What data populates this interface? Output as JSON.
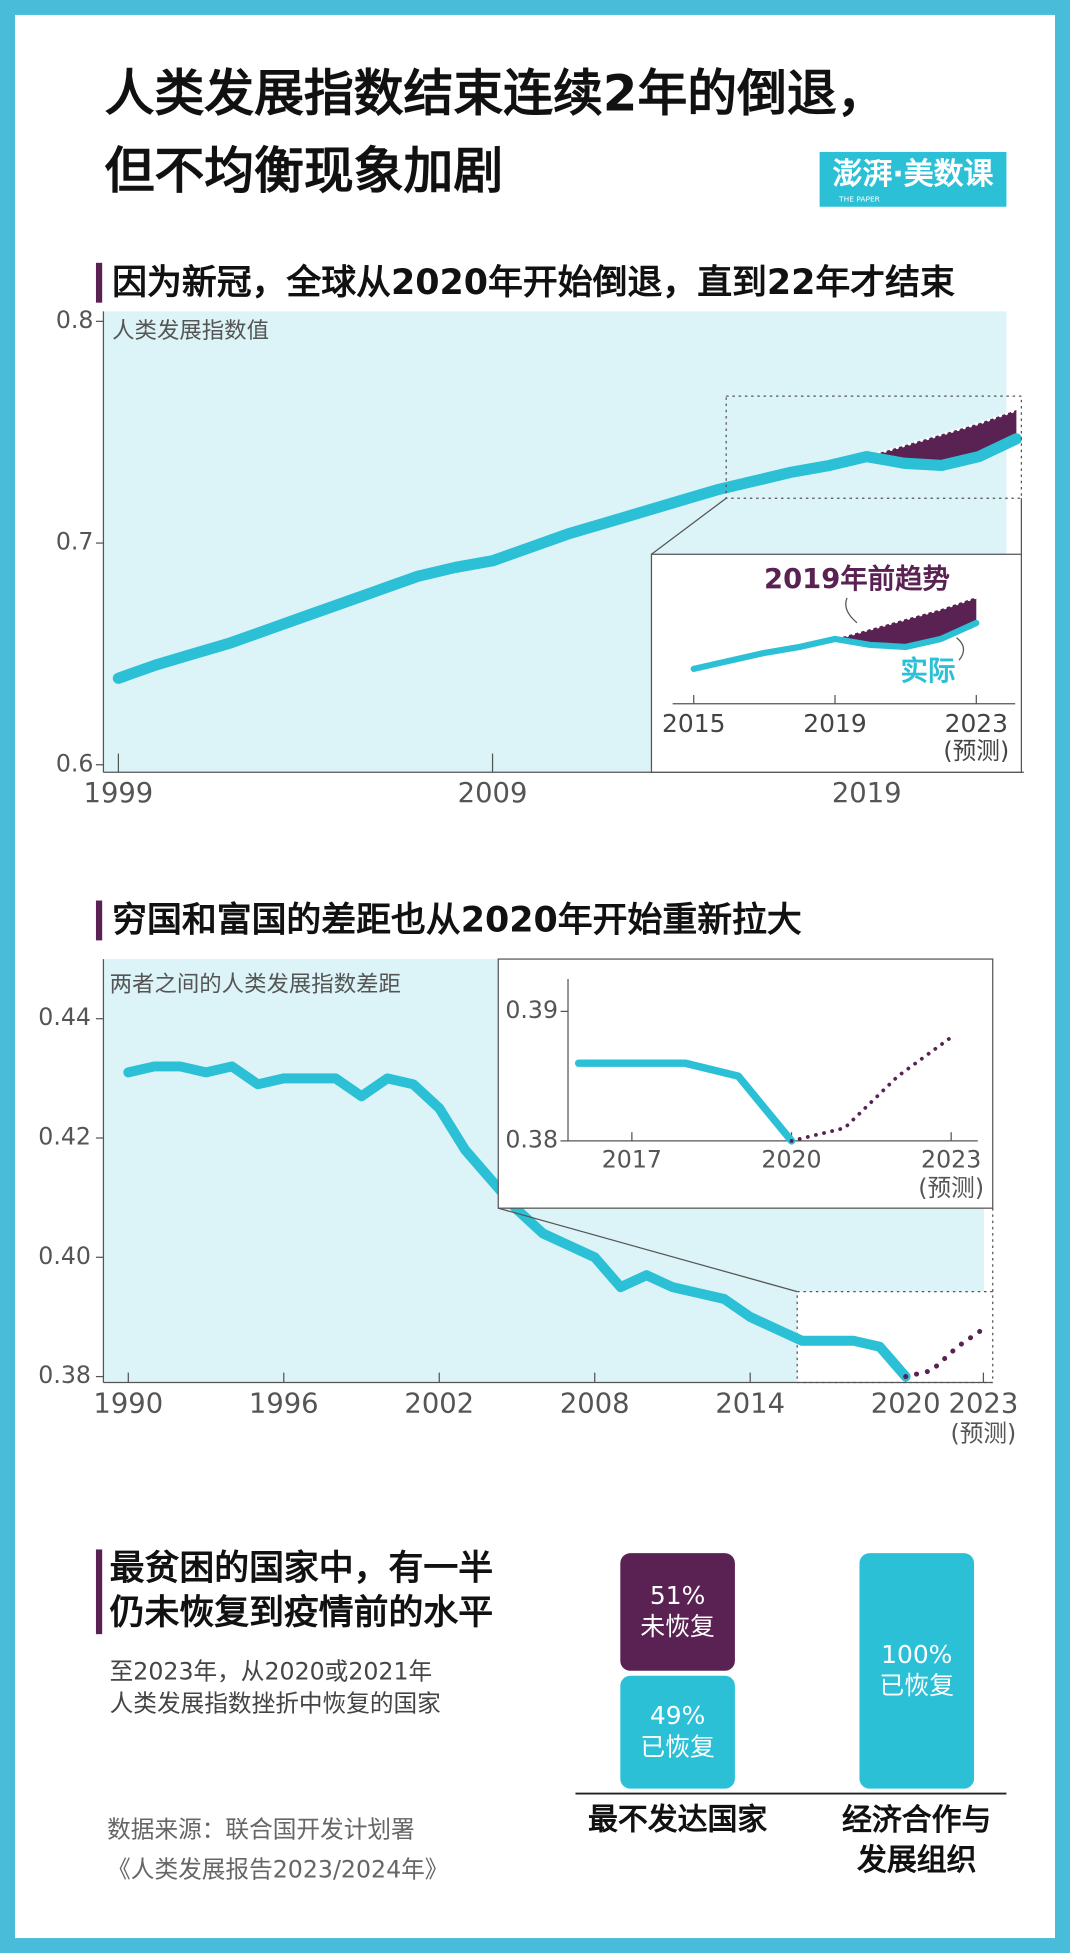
{
  "header": {
    "title_lines": [
      "人类发展指数结束连续2年的倒退，",
      "但不均衡现象加剧"
    ],
    "logo": "澎湃·美数课",
    "logo_sub": "THE PAPER"
  },
  "chart_data": [
    {
      "type": "line",
      "title": "因为新冠，全球从2020年开始倒退，直到22年才结束",
      "y_label": "人类发展指数值",
      "x": [
        1999,
        2000,
        2001,
        2002,
        2003,
        2004,
        2005,
        2006,
        2007,
        2008,
        2009,
        2010,
        2011,
        2012,
        2013,
        2014,
        2015,
        2016,
        2017,
        2018,
        2019,
        2020,
        2021,
        2022,
        2023
      ],
      "series": [
        {
          "name": "实际",
          "color": "#2cc0d7",
          "values": [
            0.639,
            0.645,
            0.65,
            0.655,
            0.661,
            0.667,
            0.673,
            0.679,
            0.685,
            0.689,
            0.692,
            0.698,
            0.704,
            0.709,
            0.714,
            0.719,
            0.724,
            0.728,
            0.732,
            0.735,
            0.739,
            0.736,
            0.735,
            0.739,
            0.747
          ]
        },
        {
          "name": "2019年前趋势",
          "color": "#5a2252",
          "values": [
            null,
            null,
            null,
            null,
            null,
            null,
            null,
            null,
            null,
            null,
            null,
            null,
            null,
            null,
            null,
            null,
            null,
            null,
            null,
            null,
            0.739,
            0.744,
            0.749,
            0.754,
            0.76
          ]
        }
      ],
      "xlim": [
        1998.6,
        2023.2
      ],
      "ylim": [
        0.6,
        0.8
      ],
      "xticks": [
        1999,
        2009,
        2019
      ],
      "yticks": [
        0.6,
        0.7,
        0.8
      ],
      "inset": {
        "xlim": [
          2014.05,
          2024.1
        ],
        "ylim": [
          0.7065,
          0.7815
        ],
        "xticks": [
          2015,
          2019,
          2023
        ],
        "forecast_note": "(预测)"
      }
    },
    {
      "type": "line",
      "title": "穷国和富国的差距也从2020年开始重新拉大",
      "y_label": "两者之间的人类发展指数差距",
      "x": [
        1990,
        1991,
        1992,
        1993,
        1994,
        1995,
        1996,
        1997,
        1998,
        1999,
        2000,
        2001,
        2002,
        2003,
        2004,
        2005,
        2006,
        2007,
        2008,
        2009,
        2010,
        2011,
        2012,
        2013,
        2014,
        2015,
        2016,
        2017,
        2018,
        2019,
        2020,
        2021,
        2022,
        2023
      ],
      "series": [
        {
          "color": "#2cc0d7",
          "values": [
            0.431,
            0.432,
            0.432,
            0.431,
            0.432,
            0.429,
            0.43,
            0.43,
            0.43,
            0.427,
            0.43,
            0.429,
            0.425,
            0.418,
            0.413,
            0.408,
            0.404,
            0.402,
            0.4,
            0.395,
            0.397,
            0.395,
            0.394,
            0.393,
            0.39,
            0.388,
            0.386,
            0.386,
            0.386,
            0.385,
            0.38,
            null,
            null,
            null
          ]
        },
        {
          "color": "#5a2252",
          "dashed": true,
          "values": [
            null,
            null,
            null,
            null,
            null,
            null,
            null,
            null,
            null,
            null,
            null,
            null,
            null,
            null,
            null,
            null,
            null,
            null,
            null,
            null,
            null,
            null,
            null,
            null,
            null,
            null,
            null,
            null,
            null,
            null,
            0.38,
            0.381,
            0.385,
            0.388
          ]
        }
      ],
      "xlim": [
        1989.04,
        2023.36
      ],
      "ylim": [
        0.379,
        0.45
      ],
      "xticks": [
        1990,
        1996,
        2002,
        2008,
        2014,
        2020,
        2023
      ],
      "yticks": [
        0.38,
        {
          "value": 0.4,
          "label": "0.40"
        },
        0.42,
        0.44
      ],
      "forecast_note": "(预测)",
      "inset": {
        "xlim": [
          2015.8,
          2023.5
        ],
        "ylim": [
          0.38,
          0.3925
        ],
        "xticks": [
          2017,
          2020,
          2023
        ],
        "yticks": [
          0.38,
          0.39
        ],
        "forecast_note": "(预测)"
      }
    },
    {
      "type": "bar",
      "stacked": true,
      "title_lines": [
        "最贫困的国家中，有一半",
        "仍未恢复到疫情前的水平"
      ],
      "subtitle_lines": [
        "至2023年，从2020或2021年",
        "人类发展指数挫折中恢复的国家"
      ],
      "categories": [
        "最不发达国家",
        "经济合作与发展组织"
      ],
      "ylim": [
        0,
        100
      ],
      "series": [
        {
          "name": "已恢复",
          "color": "#2cc0d7",
          "values": [
            49,
            100
          ],
          "value_labels": [
            "49%",
            "100%"
          ]
        },
        {
          "name": "未恢复",
          "color": "#5a2252",
          "values": [
            51,
            0
          ],
          "value_labels": [
            "51%",
            null
          ]
        }
      ]
    }
  ],
  "source_lines": [
    "数据来源：联合国开发计划署",
    "《人类发展报告2023/2024年》"
  ]
}
